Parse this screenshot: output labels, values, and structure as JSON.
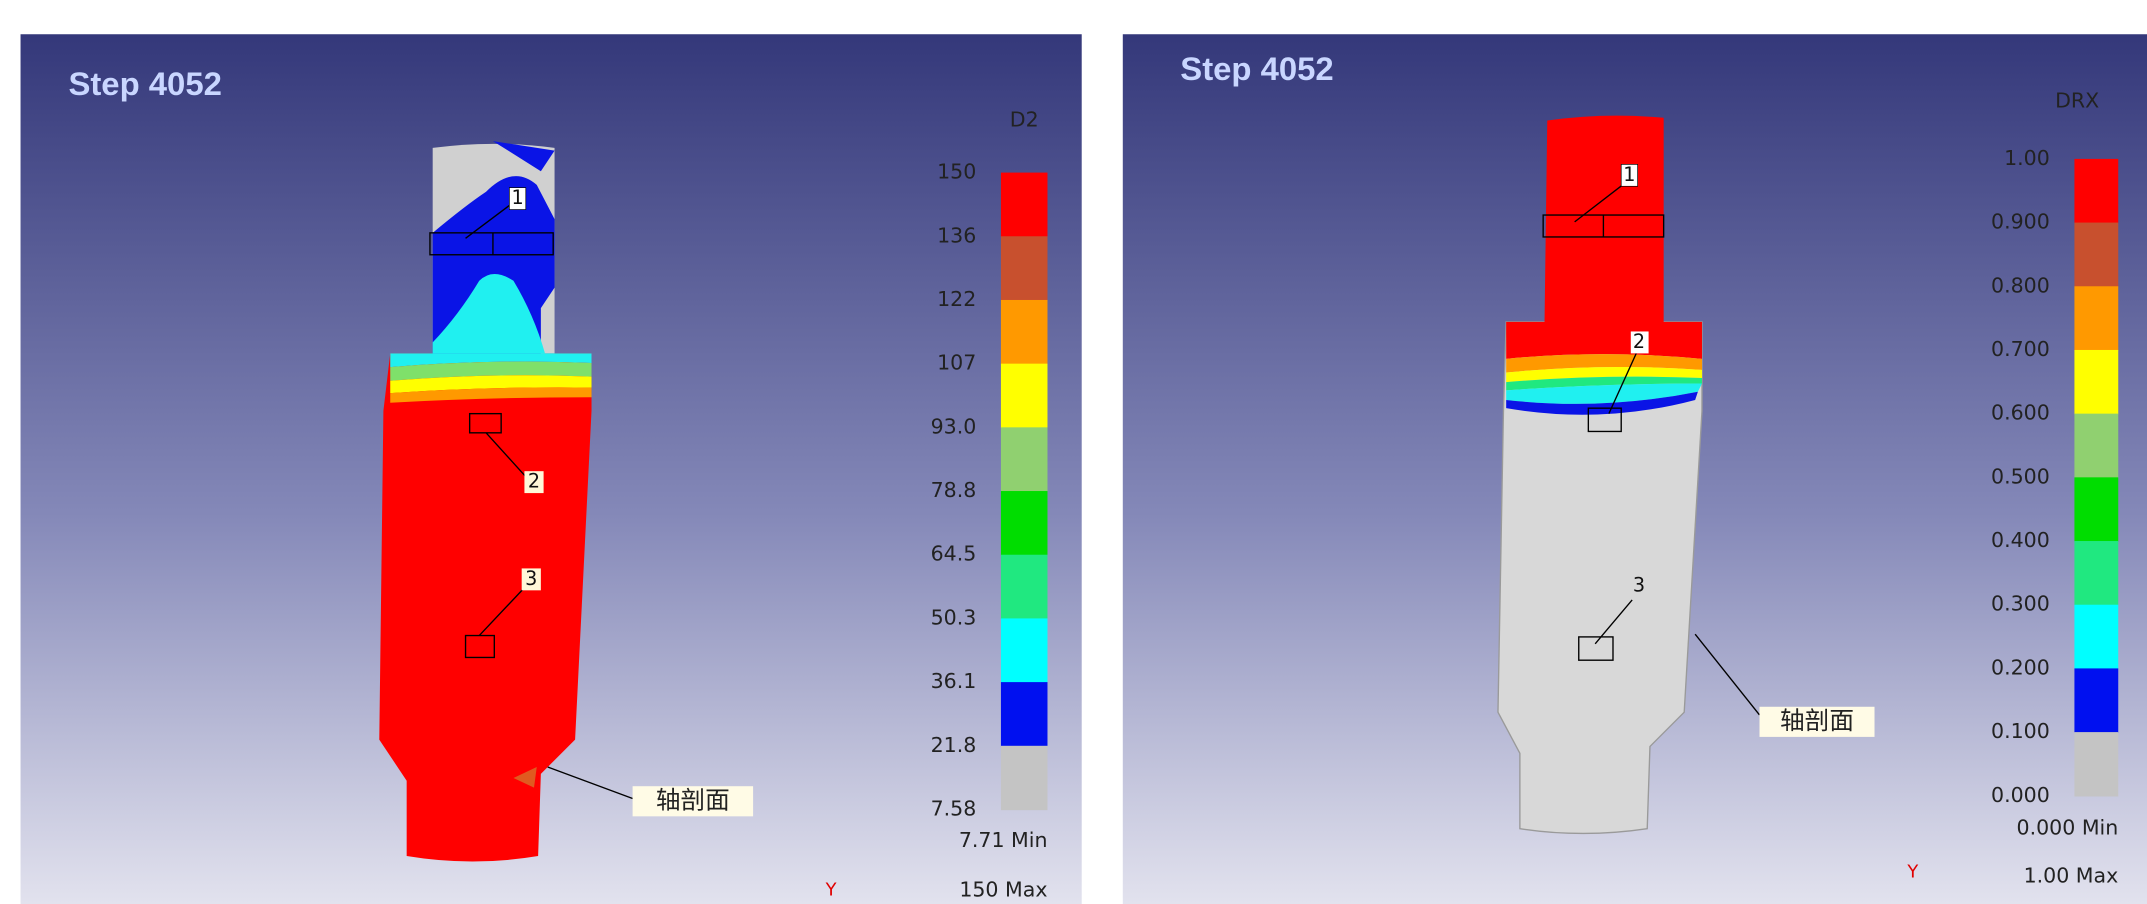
{
  "panels": [
    {
      "step": "Step 4052",
      "legend_title": "D2",
      "legend_ticks": [
        "150",
        "136",
        "122",
        "107",
        "93.0",
        "78.8",
        "64.5",
        "50.3",
        "36.1",
        "21.8",
        "7.58"
      ],
      "min": "7.71 Min",
      "max": "150 Max",
      "axis": "Y",
      "markers": [
        "1",
        "2",
        "3"
      ],
      "section_label": "轴剖面"
    },
    {
      "step": "Step 4052",
      "legend_title": "DRX",
      "legend_ticks": [
        "1.00",
        "0.900",
        "0.800",
        "0.700",
        "0.600",
        "0.500",
        "0.400",
        "0.300",
        "0.200",
        "0.100",
        "0.000"
      ],
      "min": "0.000 Min",
      "max": "1.00 Max",
      "axis": "Y",
      "markers": [
        "1",
        "2",
        "3"
      ],
      "section_label": "轴剖面"
    }
  ]
}
